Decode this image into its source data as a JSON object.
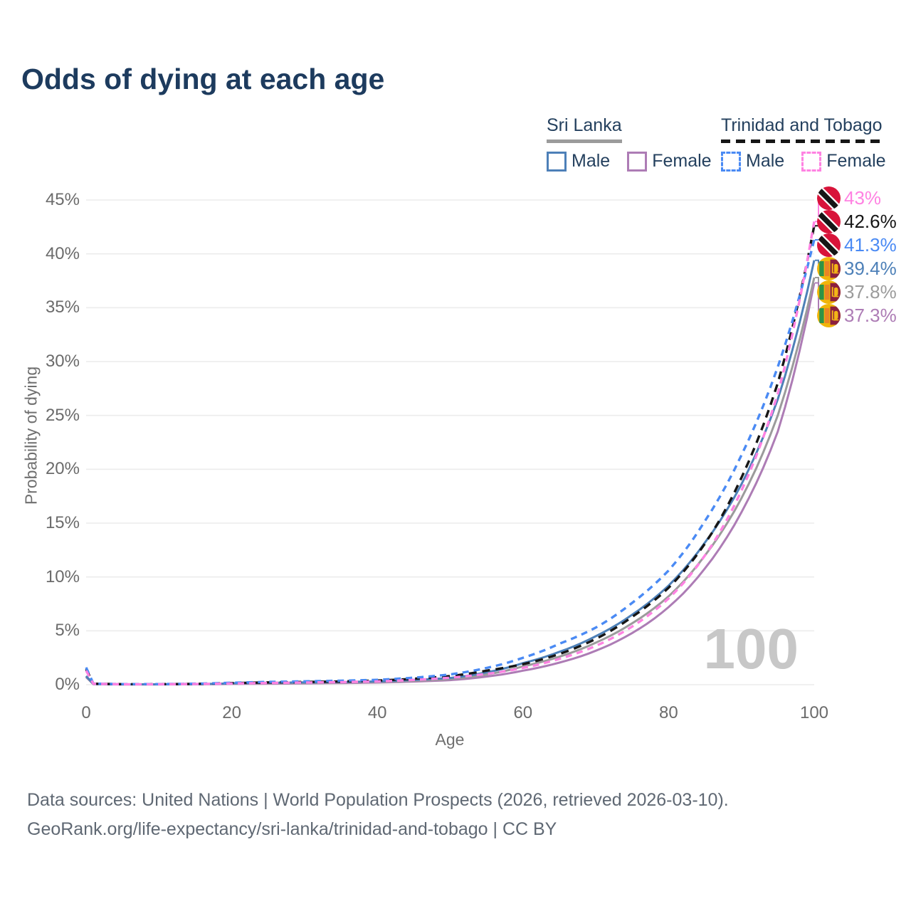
{
  "title": "Odds of dying at each age",
  "legend": {
    "groups": [
      {
        "country": "Sri Lanka",
        "line_style": "solid",
        "line_color": "#9b9b9b",
        "items": [
          {
            "label": "Male",
            "color": "#4d80b8",
            "style": "solid"
          },
          {
            "label": "Female",
            "color": "#ad7cb5",
            "style": "solid"
          }
        ]
      },
      {
        "country": "Trinidad and Tobago",
        "line_style": "dashed",
        "line_color": "#161616",
        "items": [
          {
            "label": "Male",
            "color": "#4a8af4",
            "style": "dashed"
          },
          {
            "label": "Female",
            "color": "#ff82e2",
            "style": "dashed"
          }
        ]
      }
    ]
  },
  "chart_data": {
    "type": "line",
    "title": "Odds of dying at each age",
    "xlabel": "Age",
    "ylabel": "Probability of dying",
    "xlim": [
      0,
      100
    ],
    "ylim": [
      0,
      45
    ],
    "xticks": [
      0,
      20,
      40,
      60,
      80,
      100
    ],
    "yticks": [
      0,
      5,
      10,
      15,
      20,
      25,
      30,
      35,
      40,
      45
    ],
    "ytick_suffix": "%",
    "grid": "horizontal",
    "legend_position": "top-right",
    "hover_age_indicator": "100",
    "anchor_ages": [
      0,
      1,
      5,
      10,
      15,
      20,
      25,
      30,
      35,
      40,
      45,
      50,
      55,
      60,
      65,
      70,
      75,
      80,
      85,
      90,
      95,
      100
    ],
    "series": [
      {
        "id": "sl_male",
        "name": "Sri Lanka — Male",
        "country": "Sri Lanka",
        "sex": "Male",
        "color": "#4d80b8",
        "dash": false,
        "flag": "lk",
        "end_label": "39.4%",
        "values": [
          0.8,
          0.06,
          0.03,
          0.03,
          0.05,
          0.13,
          0.18,
          0.21,
          0.25,
          0.3,
          0.44,
          0.62,
          1.15,
          2.0,
          3.05,
          4.5,
          6.5,
          9.2,
          13.2,
          18.6,
          26.5,
          39.4
        ]
      },
      {
        "id": "sl_female",
        "name": "Sri Lanka — Female",
        "country": "Sri Lanka",
        "sex": "Female",
        "color": "#ad7cb5",
        "dash": false,
        "flag": "lk",
        "end_label": "37.3%",
        "values": [
          0.7,
          0.05,
          0.025,
          0.025,
          0.035,
          0.07,
          0.09,
          0.12,
          0.15,
          0.2,
          0.29,
          0.42,
          0.75,
          1.3,
          2.05,
          3.15,
          4.8,
          7.2,
          10.8,
          16.0,
          23.5,
          37.3
        ]
      },
      {
        "id": "sl_both",
        "name": "Sri Lanka — Both sexes",
        "country": "Sri Lanka",
        "sex": "Both",
        "color": "#9b9b9b",
        "dash": false,
        "flag": "lk",
        "end_label": "37.8%",
        "values": [
          0.75,
          0.055,
          0.028,
          0.028,
          0.042,
          0.1,
          0.13,
          0.16,
          0.2,
          0.25,
          0.36,
          0.52,
          0.95,
          1.7,
          2.6,
          3.9,
          5.7,
          8.2,
          12.0,
          17.3,
          25.0,
          37.8
        ]
      },
      {
        "id": "tt_male",
        "name": "Trinidad and Tobago — Male",
        "country": "Trinidad and Tobago",
        "sex": "Male",
        "color": "#4a8af4",
        "dash": true,
        "flag": "tt",
        "end_label": "41.3%",
        "values": [
          1.6,
          0.1,
          0.05,
          0.05,
          0.09,
          0.18,
          0.26,
          0.31,
          0.37,
          0.45,
          0.65,
          0.95,
          1.55,
          2.5,
          3.8,
          5.3,
          7.6,
          10.6,
          15.2,
          21.3,
          29.5,
          41.3
        ]
      },
      {
        "id": "tt_female",
        "name": "Trinidad and Tobago — Female",
        "country": "Trinidad and Tobago",
        "sex": "Female",
        "color": "#ff82e2",
        "dash": true,
        "flag": "tt",
        "end_label": "43%",
        "values": [
          1.3,
          0.08,
          0.04,
          0.04,
          0.06,
          0.11,
          0.16,
          0.2,
          0.24,
          0.3,
          0.44,
          0.65,
          1.0,
          1.55,
          2.4,
          3.6,
          5.4,
          8.0,
          12.0,
          18.0,
          27.0,
          43.0
        ]
      },
      {
        "id": "tt_both",
        "name": "Trinidad and Tobago — Both sexes",
        "country": "Trinidad and Tobago",
        "sex": "Both",
        "color": "#161616",
        "dash": true,
        "flag": "tt",
        "end_label": "42.6%",
        "values": [
          1.45,
          0.09,
          0.045,
          0.045,
          0.075,
          0.15,
          0.21,
          0.25,
          0.3,
          0.38,
          0.55,
          0.8,
          1.3,
          1.9,
          2.85,
          4.25,
          6.3,
          9.0,
          13.1,
          19.2,
          28.0,
          42.6
        ]
      }
    ]
  },
  "footer": {
    "line1": "Data sources: United Nations | World Population Prospects (2026, retrieved 2026-03-10).",
    "line2": "GeoRank.org/life-expectancy/sri-lanka/trinidad-and-tobago | CC BY"
  }
}
